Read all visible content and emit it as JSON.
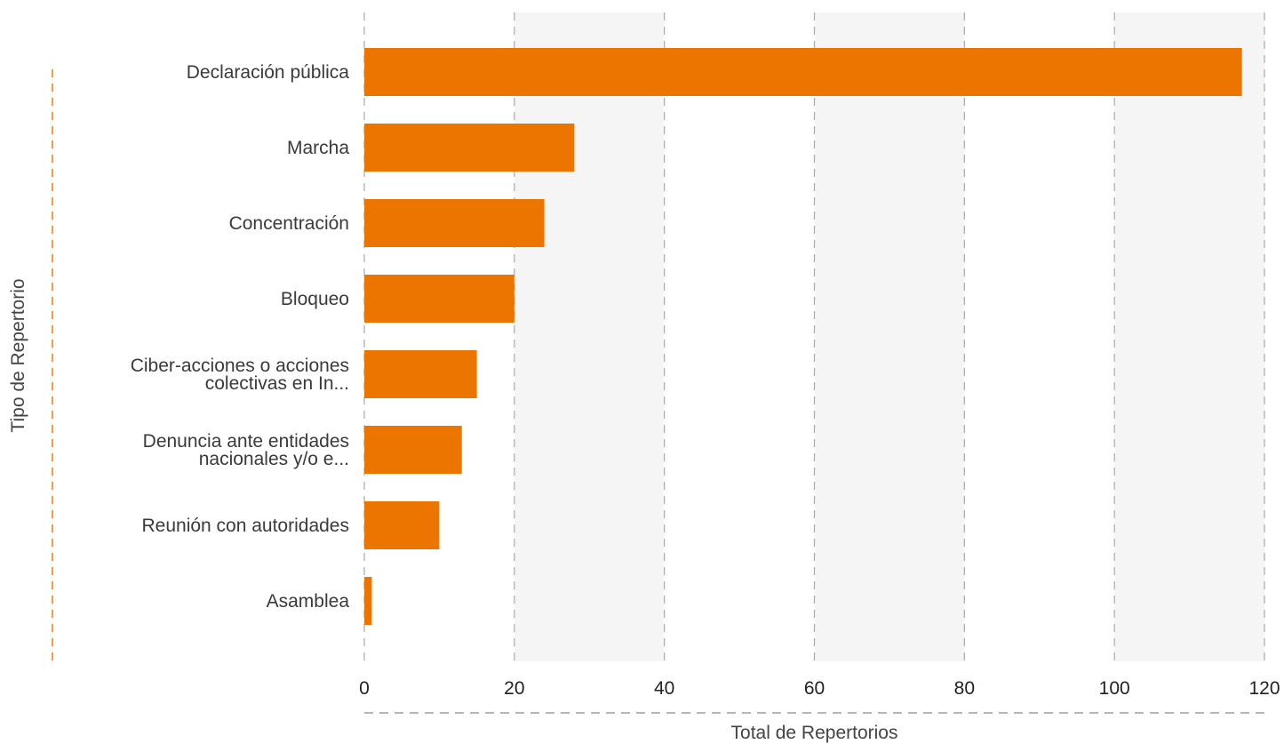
{
  "chart_data": {
    "type": "bar",
    "orientation": "horizontal",
    "categories": [
      "Declaración pública",
      "Marcha",
      "Concentración",
      "Bloqueo",
      "Ciber-acciones o acciones colectivas en In...",
      "Denuncia ante entidades nacionales y/o e...",
      "Reunión con autoridades",
      "Asamblea"
    ],
    "category_lines": [
      [
        "Declaración pública"
      ],
      [
        "Marcha"
      ],
      [
        "Concentración"
      ],
      [
        "Bloqueo"
      ],
      [
        "Ciber-acciones o acciones",
        "colectivas en In..."
      ],
      [
        "Denuncia ante entidades",
        "nacionales y/o e..."
      ],
      [
        "Reunión con autoridades"
      ],
      [
        "Asamblea"
      ]
    ],
    "values": [
      117,
      28,
      24,
      20,
      15,
      13,
      10,
      1
    ],
    "xlabel": "Total de Repertorios",
    "ylabel": "Tipo de Repertorio",
    "xlim": [
      0,
      120
    ],
    "xticks": [
      "0",
      "20",
      "40",
      "60",
      "80",
      "100",
      "120"
    ],
    "grid": true,
    "bar_color": "#ec7500",
    "band_color": "#f4f5f4",
    "grid_color": "#a9a9a9",
    "ylabel_rule_color": "#ec7500"
  }
}
